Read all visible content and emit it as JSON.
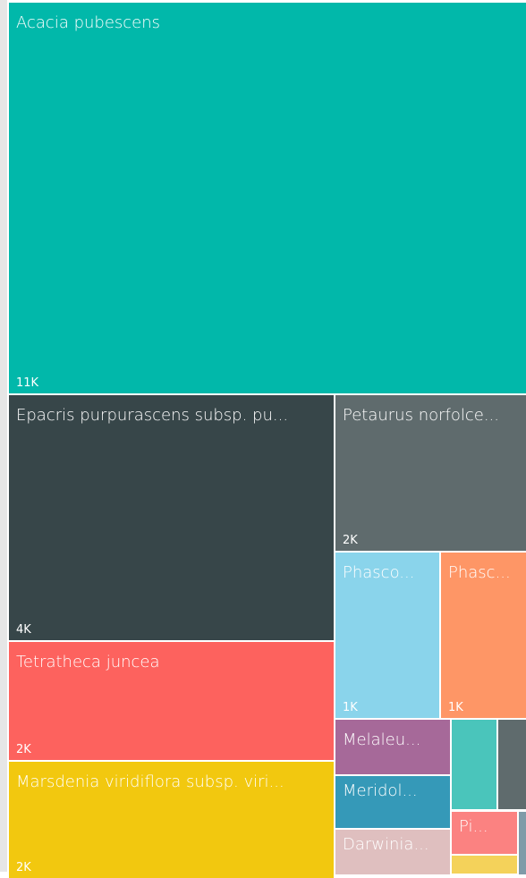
{
  "chart_data": {
    "type": "treemap",
    "categories": [
      "Acacia pubescens",
      "Epacris purpurascens subsp. pu...",
      "Petaurus norfolce...",
      "Tetratheca juncea",
      "Marsdenia viridiflora subsp. viri...",
      "Phasco...",
      "Phasc...",
      "Melaleu...",
      "Meridol...",
      "Darwinia...",
      null,
      null,
      "Pi...",
      null,
      null
    ],
    "values": [
      11000,
      4000,
      2000,
      2000,
      2000,
      1000,
      1000,
      800,
      700,
      600,
      500,
      400,
      300,
      200,
      100
    ],
    "value_labels": [
      "11K",
      "4K",
      "2K",
      "2K",
      "2K",
      "1K",
      "1K",
      null,
      null,
      null,
      null,
      null,
      null,
      null,
      null
    ],
    "colors": [
      "#01B8AA",
      "#374649",
      "#5F6B6D",
      "#FD625E",
      "#F2C80F",
      "#8AD4EB",
      "#FE9666",
      "#A66999",
      "#3599B8",
      "#DFBFBF",
      "#4AC5BB",
      "#5F6B6D",
      "#FB8281",
      "#F4D25A",
      "#7F9BA8"
    ]
  }
}
